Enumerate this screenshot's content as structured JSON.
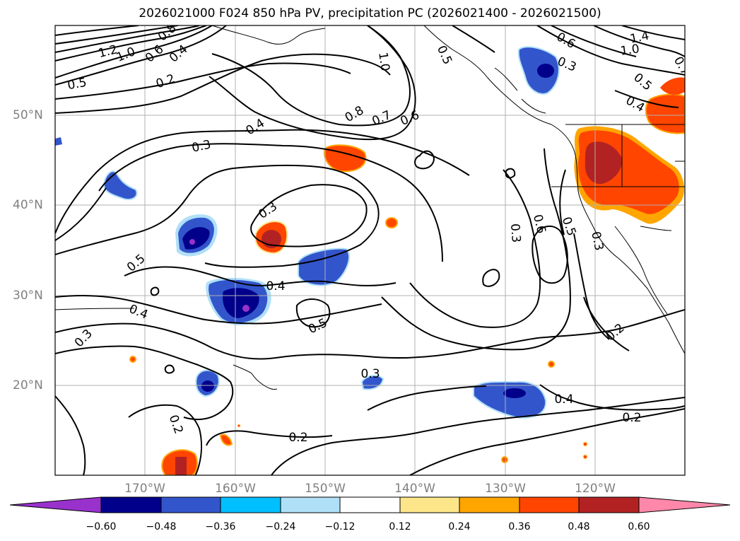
{
  "title": "2026021000 F024 850 hPa PV, precipitation PC (2026021400 - 2026021500)",
  "lat_labels": [
    "50°N",
    "40°N",
    "30°N",
    "20°N"
  ],
  "lon_labels": [
    "170°W",
    "160°W",
    "150°W",
    "140°W",
    "130°W",
    "120°W"
  ],
  "contour_labels": [
    "1.2",
    "1.0",
    "0.6",
    "0.4",
    "0.8",
    "0.5",
    "0.2",
    "0.4",
    "0.3",
    "0.8",
    "0.7",
    "0.6",
    "1.0",
    "0.5",
    "1.4",
    "1.0",
    "0.6",
    "0.7",
    "0.5",
    "0.4",
    "0.3",
    "0.3",
    "0.5",
    "0.4",
    "0.4",
    "0.5",
    "0.3",
    "0.3",
    "0.6",
    "0.5",
    "0.3",
    "0.2",
    "0.2",
    "0.2",
    "0.4",
    "0.3",
    "0.2"
  ],
  "colorbar": {
    "ticks": [
      "−0.60",
      "−0.48",
      "−0.36",
      "−0.24",
      "−0.12",
      "0.12",
      "0.24",
      "0.36",
      "0.48",
      "0.60"
    ],
    "colors": [
      "#9932cc",
      "#00008b",
      "#3355cc",
      "#00bfff",
      "#b0e0f8",
      "#ffffff",
      "#fde68a",
      "#ffa500",
      "#ff4500",
      "#b22222",
      "#ff88aa"
    ]
  },
  "map": {
    "region": "North-East Pacific",
    "variable": "850 hPa PV contours with precipitation PC shading"
  }
}
